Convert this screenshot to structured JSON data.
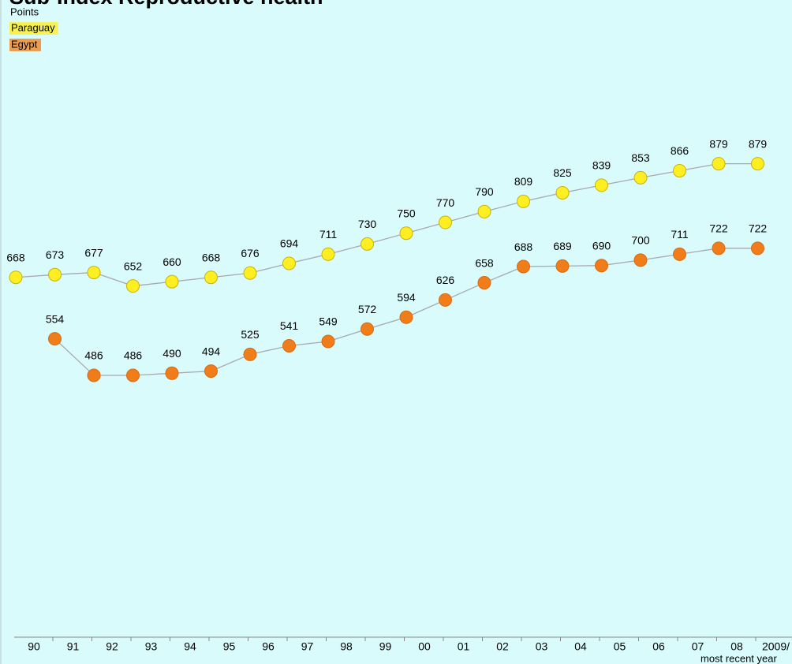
{
  "chart_data": {
    "type": "line",
    "title": "Sub-Index Reproductive health",
    "legend_title": "Points",
    "categories": [
      "90",
      "91",
      "92",
      "93",
      "94",
      "95",
      "96",
      "97",
      "98",
      "99",
      "00",
      "01",
      "02",
      "03",
      "04",
      "05",
      "06",
      "07",
      "08",
      "2009/"
    ],
    "x_label": "most recent year",
    "series": [
      {
        "name": "Paraguay",
        "color": "#ffee22",
        "values": [
          668,
          673,
          677,
          652,
          660,
          668,
          676,
          694,
          711,
          730,
          750,
          770,
          790,
          809,
          825,
          839,
          853,
          866,
          879,
          879
        ]
      },
      {
        "name": "Egypt",
        "color": "#f07d1a",
        "values": [
          null,
          554,
          486,
          486,
          490,
          494,
          525,
          541,
          549,
          572,
          594,
          626,
          658,
          688,
          689,
          690,
          700,
          711,
          722,
          722
        ]
      }
    ],
    "line_color": "#a8a8b0",
    "ylim": [
      0,
      1180
    ]
  }
}
